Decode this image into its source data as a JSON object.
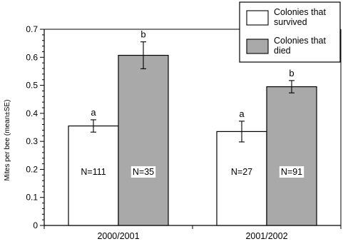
{
  "chart_data": {
    "type": "bar",
    "title": "",
    "xlabel": "",
    "ylabel": "Mites per bee (mean±SE)",
    "ylim": [
      0,
      0.7
    ],
    "yticks": [
      "0",
      "0.1",
      "0.2",
      "0.3",
      "0.4",
      "0.5",
      "0.6",
      "0.7"
    ],
    "categories": [
      "2000/2001",
      "2001/2002"
    ],
    "series": [
      {
        "name": "Colonies that survived",
        "color": "#ffffff",
        "values": [
          0.355,
          0.335
        ],
        "se": [
          0.022,
          0.037
        ],
        "sig_letters": [
          "a",
          "a"
        ],
        "n_labels": [
          "N=111",
          "N=27"
        ]
      },
      {
        "name": "Colonies that died",
        "color": "#a9a9a9",
        "values": [
          0.607,
          0.495
        ],
        "se": [
          0.048,
          0.022
        ],
        "sig_letters": [
          "b",
          "b"
        ],
        "n_labels": [
          "N=35",
          "N=91"
        ]
      }
    ],
    "legend": {
      "placement": "top-right",
      "entries": [
        "Colonies that\nsurvived",
        "Colonies that\ndied"
      ]
    },
    "grid": false
  }
}
